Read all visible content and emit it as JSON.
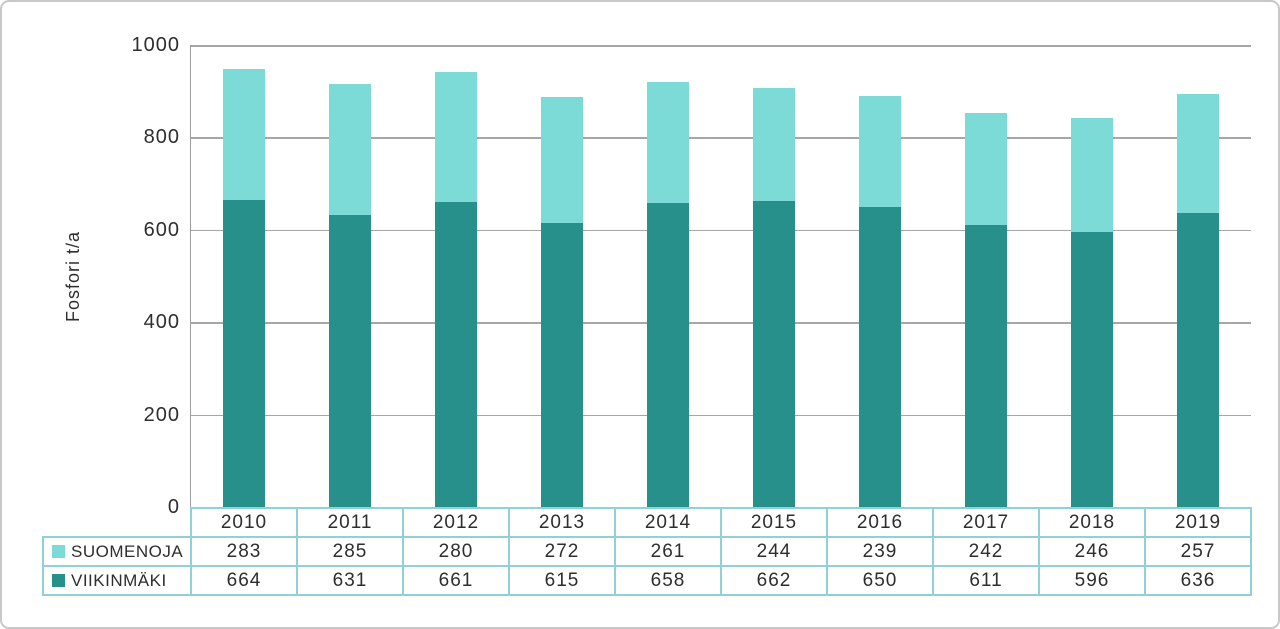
{
  "chart_data": {
    "type": "bar",
    "stacked": true,
    "title": "",
    "ylabel": "Fosfori t/a",
    "xlabel": "",
    "ylim": [
      0,
      1000
    ],
    "yticks": [
      1000,
      800,
      600,
      400,
      200,
      0
    ],
    "grid": true,
    "legend_position": "table-left",
    "categories": [
      "2010",
      "2011",
      "2012",
      "2013",
      "2014",
      "2015",
      "2016",
      "2017",
      "2018",
      "2019"
    ],
    "series": [
      {
        "name": "SUOMENOJA",
        "color": "#7CDBD7",
        "values": [
          283,
          285,
          280,
          272,
          261,
          244,
          239,
          242,
          246,
          257
        ]
      },
      {
        "name": "VIIKINMÄKI",
        "color": "#28908B",
        "values": [
          664,
          631,
          661,
          615,
          658,
          662,
          650,
          611,
          596,
          636
        ]
      }
    ],
    "stack_order_bottom_to_top": [
      "VIIKINMÄKI",
      "SUOMENOJA"
    ]
  },
  "colors": {
    "suomenoja_bar": "#7CDBD7",
    "viikinmaki_bar": "#28908B",
    "gridline": "#A6A6A6",
    "axis_line": "#9E9E9E",
    "table_border": "#8FD1D6",
    "text": "#2E2E2E",
    "frame_border": "#C8C8C8",
    "background": "#FFFFFF"
  }
}
